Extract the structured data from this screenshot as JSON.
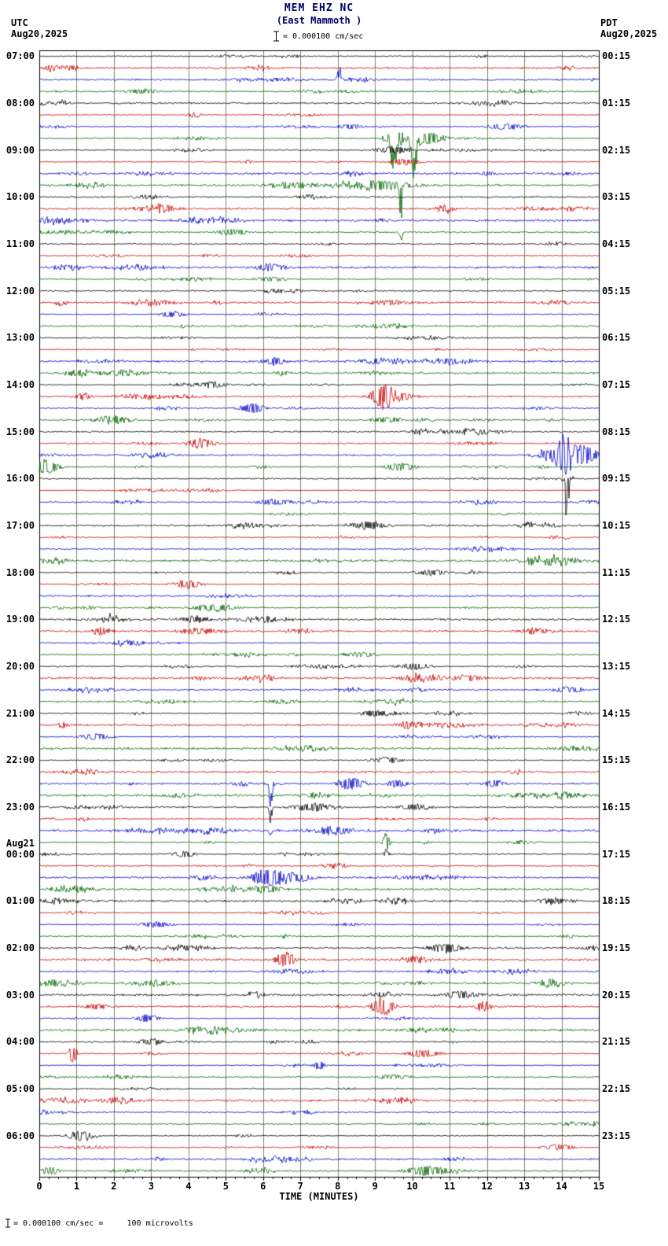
{
  "header": {
    "station": "MEM EHZ NC",
    "location": "(East Mammoth )",
    "tz_left": "UTC",
    "date_left": "Aug20,2025",
    "tz_right": "PDT",
    "date_right": "Aug20,2025",
    "scale_text": "= 0.000100 cm/sec"
  },
  "axis": {
    "x_label": "TIME (MINUTES)",
    "x_ticks": [
      "0",
      "1",
      "2",
      "3",
      "4",
      "5",
      "6",
      "7",
      "8",
      "9",
      "10",
      "11",
      "12",
      "13",
      "14",
      "15"
    ]
  },
  "footer": {
    "scale_note": "= 0.000100 cm/sec =     100 microvolts"
  },
  "left_labels": [
    {
      "row": 0,
      "text": "07:00"
    },
    {
      "row": 4,
      "text": "08:00"
    },
    {
      "row": 8,
      "text": "09:00"
    },
    {
      "row": 12,
      "text": "10:00"
    },
    {
      "row": 16,
      "text": "11:00"
    },
    {
      "row": 20,
      "text": "12:00"
    },
    {
      "row": 24,
      "text": "13:00"
    },
    {
      "row": 28,
      "text": "14:00"
    },
    {
      "row": 32,
      "text": "15:00"
    },
    {
      "row": 36,
      "text": "16:00"
    },
    {
      "row": 40,
      "text": "17:00"
    },
    {
      "row": 44,
      "text": "18:00"
    },
    {
      "row": 48,
      "text": "19:00"
    },
    {
      "row": 52,
      "text": "20:00"
    },
    {
      "row": 56,
      "text": "21:00"
    },
    {
      "row": 60,
      "text": "22:00"
    },
    {
      "row": 64,
      "text": "23:00"
    },
    {
      "row": 67.1,
      "text": "Aug21"
    },
    {
      "row": 68,
      "text": "00:00"
    },
    {
      "row": 72,
      "text": "01:00"
    },
    {
      "row": 76,
      "text": "02:00"
    },
    {
      "row": 80,
      "text": "03:00"
    },
    {
      "row": 84,
      "text": "04:00"
    },
    {
      "row": 88,
      "text": "05:00"
    },
    {
      "row": 92,
      "text": "06:00"
    }
  ],
  "right_labels": [
    {
      "row": 0,
      "text": "00:15"
    },
    {
      "row": 4,
      "text": "01:15"
    },
    {
      "row": 8,
      "text": "02:15"
    },
    {
      "row": 12,
      "text": "03:15"
    },
    {
      "row": 16,
      "text": "04:15"
    },
    {
      "row": 20,
      "text": "05:15"
    },
    {
      "row": 24,
      "text": "06:15"
    },
    {
      "row": 28,
      "text": "07:15"
    },
    {
      "row": 32,
      "text": "08:15"
    },
    {
      "row": 36,
      "text": "09:15"
    },
    {
      "row": 40,
      "text": "10:15"
    },
    {
      "row": 44,
      "text": "11:15"
    },
    {
      "row": 48,
      "text": "12:15"
    },
    {
      "row": 52,
      "text": "13:15"
    },
    {
      "row": 56,
      "text": "14:15"
    },
    {
      "row": 60,
      "text": "15:15"
    },
    {
      "row": 64,
      "text": "16:15"
    },
    {
      "row": 68,
      "text": "17:15"
    },
    {
      "row": 72,
      "text": "18:15"
    },
    {
      "row": 76,
      "text": "19:15"
    },
    {
      "row": 80,
      "text": "20:15"
    },
    {
      "row": 84,
      "text": "21:15"
    },
    {
      "row": 88,
      "text": "22:15"
    },
    {
      "row": 92,
      "text": "23:15"
    }
  ],
  "chart_data": {
    "type": "line",
    "subtype": "helicorder-seismogram",
    "station": "MEM EHZ NC (East Mammoth)",
    "start_utc": "Aug20,2025 07:00",
    "end_utc": "Aug21,2025 07:00",
    "minutes_per_row": 15,
    "num_rows": 96,
    "x_range_minutes": [
      0,
      15
    ],
    "amplitude_scale": "0.000100 cm/sec = 100 microvolts",
    "row_color_cycle": [
      "#000000",
      "#cc0000",
      "#0000cc",
      "#006600"
    ],
    "grid_color": "#84846f",
    "noise_seed": 42,
    "events_format": [
      "row_index",
      "minute",
      "amplitude_px",
      "width_min",
      "direction(-1 down,0 both,1 up)"
    ],
    "events": [
      [
        1,
        0.35,
        4,
        0.15,
        0
      ],
      [
        2,
        8.05,
        20,
        0.04,
        1
      ],
      [
        3,
        2.7,
        3,
        0.3,
        0
      ],
      [
        5,
        4.15,
        4,
        0.12,
        0
      ],
      [
        6,
        8.3,
        3,
        0.25,
        0
      ],
      [
        6,
        12.5,
        4,
        0.35,
        0
      ],
      [
        7,
        9.5,
        62,
        0.05,
        -1
      ],
      [
        7,
        9.55,
        10,
        0.2,
        0
      ],
      [
        7,
        10.05,
        55,
        0.07,
        -1
      ],
      [
        7,
        10.3,
        8,
        0.4,
        0
      ],
      [
        8,
        9.5,
        5,
        0.3,
        0
      ],
      [
        9,
        9.8,
        4,
        0.3,
        0
      ],
      [
        11,
        9.7,
        58,
        0.04,
        -1
      ],
      [
        11,
        9.7,
        28,
        0.035,
        1
      ],
      [
        11,
        9.2,
        6,
        0.6,
        0
      ],
      [
        13,
        3.3,
        4,
        0.3,
        0
      ],
      [
        15,
        9.7,
        16,
        0.03,
        -1
      ],
      [
        15,
        5.2,
        4,
        0.3,
        0
      ],
      [
        18,
        6.2,
        5,
        0.3,
        0
      ],
      [
        19,
        6.2,
        3,
        0.3,
        0
      ],
      [
        22,
        3.6,
        4,
        0.25,
        0
      ],
      [
        26,
        6.3,
        5,
        0.25,
        0
      ],
      [
        28,
        4.6,
        4,
        0.3,
        0
      ],
      [
        29,
        1.2,
        5,
        0.15,
        0
      ],
      [
        29,
        9.2,
        16,
        0.22,
        0
      ],
      [
        29,
        9.6,
        6,
        0.3,
        0
      ],
      [
        30,
        5.7,
        6,
        0.25,
        0
      ],
      [
        31,
        2.0,
        5,
        0.3,
        0
      ],
      [
        31,
        9.3,
        4,
        0.3,
        0
      ],
      [
        33,
        4.4,
        4,
        0.3,
        0
      ],
      [
        34,
        13.6,
        8,
        0.15,
        0
      ],
      [
        34,
        14.05,
        24,
        0.18,
        0
      ],
      [
        34,
        14.5,
        14,
        0.3,
        0
      ],
      [
        35,
        0.15,
        10,
        0.25,
        0
      ],
      [
        35,
        9.7,
        5,
        0.3,
        0
      ],
      [
        36,
        14.15,
        85,
        0.035,
        -1
      ],
      [
        36,
        14.15,
        13,
        0.05,
        1
      ],
      [
        38,
        6.3,
        4,
        0.3,
        0
      ],
      [
        40,
        8.8,
        5,
        0.35,
        0
      ],
      [
        41,
        14.15,
        6,
        0.04,
        -1
      ],
      [
        44,
        10.5,
        4,
        0.3,
        0
      ],
      [
        45,
        4.0,
        6,
        0.22,
        0
      ],
      [
        47,
        4.7,
        5,
        0.4,
        0
      ],
      [
        48,
        4.2,
        4,
        0.3,
        0
      ],
      [
        49,
        1.7,
        5,
        0.2,
        0
      ],
      [
        50,
        2.4,
        4,
        0.3,
        0
      ],
      [
        51,
        8.6,
        3,
        0.4,
        0
      ],
      [
        52,
        10.1,
        4,
        0.3,
        0
      ],
      [
        53,
        11.5,
        4,
        0.3,
        0
      ],
      [
        54,
        14.2,
        4,
        0.3,
        0
      ],
      [
        55,
        6.5,
        3,
        0.3,
        0
      ],
      [
        56,
        9.0,
        4,
        0.3,
        0
      ],
      [
        57,
        9.9,
        5,
        0.25,
        0
      ],
      [
        58,
        1.5,
        4,
        0.3,
        0
      ],
      [
        60,
        9.3,
        4,
        0.3,
        0
      ],
      [
        62,
        6.2,
        45,
        0.035,
        -1
      ],
      [
        62,
        6.2,
        14,
        0.04,
        1
      ],
      [
        62,
        8.35,
        8,
        0.25,
        0
      ],
      [
        62,
        9.6,
        5,
        0.2,
        0
      ],
      [
        62,
        12.2,
        5,
        0.2,
        0
      ],
      [
        63,
        6.2,
        6,
        0.04,
        -1
      ],
      [
        64,
        6.2,
        24,
        0.03,
        -1
      ],
      [
        64,
        7.3,
        5,
        0.4,
        0
      ],
      [
        64,
        10.1,
        4,
        0.3,
        0
      ],
      [
        66,
        6.2,
        8,
        0.03,
        -1
      ],
      [
        67,
        9.3,
        15,
        0.06,
        0
      ],
      [
        68,
        9.3,
        6,
        0.05,
        0
      ],
      [
        68,
        3.9,
        4,
        0.2,
        0
      ],
      [
        70,
        6.15,
        12,
        0.3,
        0
      ],
      [
        70,
        6.9,
        6,
        0.3,
        0
      ],
      [
        71,
        6.1,
        5,
        0.3,
        0
      ],
      [
        72,
        13.8,
        4,
        0.3,
        0
      ],
      [
        74,
        3.1,
        4,
        0.3,
        0
      ],
      [
        76,
        10.9,
        6,
        0.35,
        0
      ],
      [
        77,
        6.6,
        10,
        0.18,
        0
      ],
      [
        79,
        3.2,
        4,
        0.3,
        0
      ],
      [
        79,
        13.7,
        5,
        0.25,
        0
      ],
      [
        80,
        11.3,
        5,
        0.3,
        0
      ],
      [
        81,
        9.2,
        12,
        0.2,
        0
      ],
      [
        81,
        11.9,
        6,
        0.15,
        0
      ],
      [
        81,
        1.5,
        4,
        0.2,
        0
      ],
      [
        82,
        2.9,
        5,
        0.22,
        0
      ],
      [
        83,
        4.3,
        4,
        0.3,
        0
      ],
      [
        84,
        3.0,
        4,
        0.25,
        0
      ],
      [
        85,
        0.9,
        13,
        0.07,
        0
      ],
      [
        85,
        10.3,
        5,
        0.3,
        0
      ],
      [
        86,
        7.5,
        5,
        0.12,
        0
      ],
      [
        87,
        9.5,
        3,
        0.3,
        0
      ],
      [
        89,
        2.1,
        4,
        0.2,
        0
      ],
      [
        92,
        1.1,
        6,
        0.25,
        0
      ],
      [
        93,
        13.9,
        4,
        0.3,
        0
      ],
      [
        95,
        10.4,
        6,
        0.4,
        0
      ],
      [
        95,
        0.3,
        5,
        0.2,
        0
      ]
    ]
  }
}
